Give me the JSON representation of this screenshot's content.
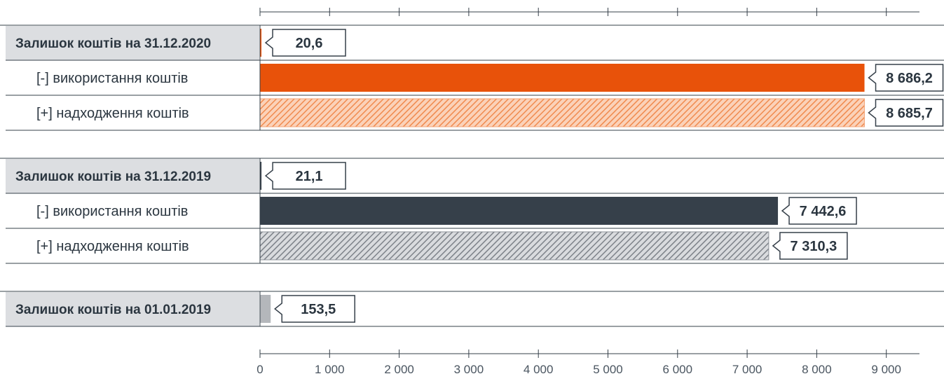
{
  "chart_data": {
    "type": "bar",
    "orientation": "horizontal",
    "xlim": [
      0,
      10000
    ],
    "x_ticks": [
      "0",
      "1 000",
      "2 000",
      "3 000",
      "4 000",
      "5 000",
      "6 000",
      "7 000",
      "8 000",
      "9 000"
    ],
    "groups": [
      {
        "rows": [
          {
            "label": "Залишок коштів на 31.12.2020",
            "value": 20.6,
            "value_label": "20,6",
            "kind": "balance",
            "color": "#e8520a"
          },
          {
            "label": "[-] використання коштів",
            "value": 8686.2,
            "value_label": "8 686,2",
            "kind": "solid",
            "color": "#e8520a"
          },
          {
            "label": "[+] надходження коштів",
            "value": 8685.7,
            "value_label": "8 685,7",
            "kind": "hatched",
            "color": "#f2935e"
          }
        ]
      },
      {
        "rows": [
          {
            "label": "Залишок коштів на 31.12.2019",
            "value": 21.1,
            "value_label": "21,1",
            "kind": "balance",
            "color": "#36404a"
          },
          {
            "label": "[-] використання коштів",
            "value": 7442.6,
            "value_label": "7 442,6",
            "kind": "solid",
            "color": "#36404a"
          },
          {
            "label": "[+] надходження коштів",
            "value": 7310.3,
            "value_label": "7 310,3",
            "kind": "hatched",
            "color": "#8a8f96"
          }
        ]
      },
      {
        "rows": [
          {
            "label": "Залишок коштів на 01.01.2019",
            "value": 153.5,
            "value_label": "153,5",
            "kind": "balance",
            "color": "#b4b7bb"
          }
        ]
      }
    ],
    "grid": false,
    "legend": "none"
  }
}
